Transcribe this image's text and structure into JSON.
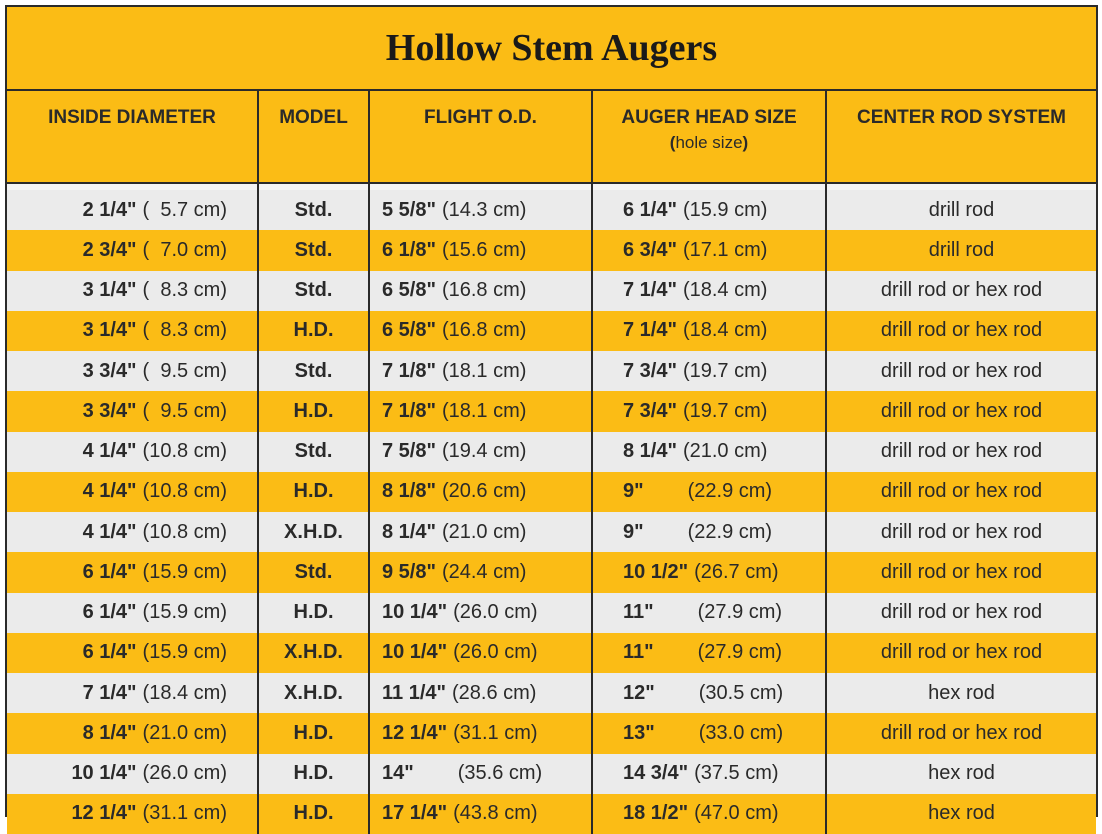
{
  "title": "Hollow Stem Augers",
  "headers": {
    "inside_diameter": "INSIDE DIAMETER",
    "model": "MODEL",
    "flight_od": "FLIGHT O.D.",
    "auger_head_size": "AUGER HEAD SIZE",
    "auger_head_sub_open": "(",
    "auger_head_sub": "hole size",
    "auger_head_sub_close": ")",
    "center_rod_system": "CENTER ROD SYSTEM"
  },
  "rows": [
    {
      "id_in": "2 1/4\"",
      "id_cm": "(  5.7 cm)",
      "model": "Std.",
      "flight_in": "5 5/8\"",
      "flight_cm": "(14.3 cm)",
      "head_in": "6 1/4\"",
      "head_cm": "(15.9 cm)",
      "rod": "drill rod"
    },
    {
      "id_in": "2 3/4\"",
      "id_cm": "(  7.0 cm)",
      "model": "Std.",
      "flight_in": "6 1/8\"",
      "flight_cm": "(15.6 cm)",
      "head_in": "6 3/4\"",
      "head_cm": "(17.1 cm)",
      "rod": "drill rod"
    },
    {
      "id_in": "3 1/4\"",
      "id_cm": "(  8.3 cm)",
      "model": "Std.",
      "flight_in": "6 5/8\"",
      "flight_cm": "(16.8 cm)",
      "head_in": "7 1/4\"",
      "head_cm": "(18.4 cm)",
      "rod": "drill rod or hex rod"
    },
    {
      "id_in": "3 1/4\"",
      "id_cm": "(  8.3 cm)",
      "model": "H.D.",
      "flight_in": "6 5/8\"",
      "flight_cm": "(16.8 cm)",
      "head_in": "7 1/4\"",
      "head_cm": "(18.4 cm)",
      "rod": "drill rod or hex rod"
    },
    {
      "id_in": "3 3/4\"",
      "id_cm": "(  9.5 cm)",
      "model": "Std.",
      "flight_in": "7 1/8\"",
      "flight_cm": "(18.1 cm)",
      "head_in": "7 3/4\"",
      "head_cm": "(19.7 cm)",
      "rod": "drill rod or hex rod"
    },
    {
      "id_in": "3 3/4\"",
      "id_cm": "(  9.5 cm)",
      "model": "H.D.",
      "flight_in": "7 1/8\"",
      "flight_cm": "(18.1 cm)",
      "head_in": "7 3/4\"",
      "head_cm": "(19.7 cm)",
      "rod": "drill rod or hex rod"
    },
    {
      "id_in": "4 1/4\"",
      "id_cm": "(10.8 cm)",
      "model": "Std.",
      "flight_in": "7 5/8\"",
      "flight_cm": "(19.4 cm)",
      "head_in": "8 1/4\"",
      "head_cm": "(21.0 cm)",
      "rod": "drill rod or hex rod"
    },
    {
      "id_in": "4 1/4\"",
      "id_cm": "(10.8 cm)",
      "model": "H.D.",
      "flight_in": "8 1/8\"",
      "flight_cm": "(20.6 cm)",
      "head_in": "9\"",
      "head_cm": "(22.9 cm)",
      "rod": "drill rod or hex rod"
    },
    {
      "id_in": "4 1/4\"",
      "id_cm": "(10.8 cm)",
      "model": "X.H.D.",
      "flight_in": "8 1/4\"",
      "flight_cm": "(21.0 cm)",
      "head_in": "9\"",
      "head_cm": "(22.9 cm)",
      "rod": "drill rod or hex rod"
    },
    {
      "id_in": "6 1/4\"",
      "id_cm": "(15.9 cm)",
      "model": "Std.",
      "flight_in": "9 5/8\"",
      "flight_cm": "(24.4 cm)",
      "head_in": "10 1/2\"",
      "head_cm": "(26.7 cm)",
      "rod": "drill rod or hex rod"
    },
    {
      "id_in": "6 1/4\"",
      "id_cm": "(15.9 cm)",
      "model": "H.D.",
      "flight_in": "10 1/4\"",
      "flight_cm": "(26.0 cm)",
      "head_in": "11\"",
      "head_cm": "(27.9 cm)",
      "rod": "drill rod or hex rod"
    },
    {
      "id_in": "6 1/4\"",
      "id_cm": "(15.9 cm)",
      "model": "X.H.D.",
      "flight_in": "10 1/4\"",
      "flight_cm": "(26.0 cm)",
      "head_in": "11\"",
      "head_cm": "(27.9 cm)",
      "rod": "drill rod or hex rod"
    },
    {
      "id_in": "7 1/4\"",
      "id_cm": "(18.4 cm)",
      "model": "X.H.D.",
      "flight_in": "11 1/4\"",
      "flight_cm": "(28.6 cm)",
      "head_in": "12\"",
      "head_cm": "(30.5 cm)",
      "rod": "hex rod"
    },
    {
      "id_in": "8 1/4\"",
      "id_cm": "(21.0 cm)",
      "model": "H.D.",
      "flight_in": "12 1/4\"",
      "flight_cm": "(31.1 cm)",
      "head_in": "13\"",
      "head_cm": "(33.0 cm)",
      "rod": "drill rod or hex rod"
    },
    {
      "id_in": "10 1/4\"",
      "id_cm": "(26.0 cm)",
      "model": "H.D.",
      "flight_in": "14\"",
      "flight_cm": "(35.6 cm)",
      "head_in": "14 3/4\"",
      "head_cm": "(37.5 cm)",
      "rod": "hex rod"
    },
    {
      "id_in": "12 1/4\"",
      "id_cm": "(31.1 cm)",
      "model": "H.D.",
      "flight_in": "17 1/4\"",
      "flight_cm": "(43.8 cm)",
      "head_in": "18 1/2\"",
      "head_cm": "(47.0 cm)",
      "rod": "hex rod"
    }
  ],
  "colors": {
    "accent_gold": "#fbbc15",
    "row_light": "#ebebeb",
    "text": "#2a2a2a"
  }
}
